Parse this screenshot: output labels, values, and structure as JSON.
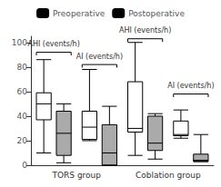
{
  "chart_data": {
    "type": "boxplot",
    "categories": [
      null,
      null,
      null,
      null
    ],
    "groups": [
      "TORS group",
      "Coblation group"
    ],
    "series": [
      {
        "name": "Preoperative",
        "color": "white",
        "values": [
          {
            "low": 10,
            "q1": 37,
            "median": 50,
            "q3": 59,
            "high": 86
          },
          {
            "low": 20,
            "q1": 21,
            "median": 31,
            "q3": 44,
            "high": 78
          },
          {
            "low": 8,
            "q1": 27,
            "median": 30,
            "q3": 68,
            "high": 100
          },
          {
            "low": 22,
            "q1": 24,
            "median": 25,
            "q3": 36,
            "high": 45
          }
        ]
      },
      {
        "name": "Postoperative",
        "color": "#aaaaaa",
        "values": [
          {
            "low": 2,
            "q1": 8,
            "median": 26,
            "q3": 44,
            "high": 50
          },
          {
            "low": 0,
            "q1": 0,
            "median": 10,
            "q3": 33,
            "high": 48
          },
          {
            "low": 5,
            "q1": 12,
            "median": 18,
            "q3": 40,
            "high": 42
          },
          {
            "low": 3,
            "q1": 3,
            "median": 4,
            "q3": 9,
            "high": 25
          }
        ]
      }
    ],
    "annotations": [
      {
        "text": "AHI (events/h)",
        "category": 0,
        "y": 92,
        "text_y": 95
      },
      {
        "text": "AI (events/h)",
        "category": 1,
        "y": 82,
        "text_y": 85
      },
      {
        "text": "AHI (events/h)",
        "category": 2,
        "y": 103,
        "text_y": 106
      },
      {
        "text": "AI (events/h)",
        "category": 3,
        "y": 58,
        "text_y": 61
      }
    ],
    "ylim": [
      0,
      105
    ],
    "yticks": [
      0,
      20,
      40,
      60,
      80,
      100
    ],
    "grid": false,
    "legend": "top"
  }
}
